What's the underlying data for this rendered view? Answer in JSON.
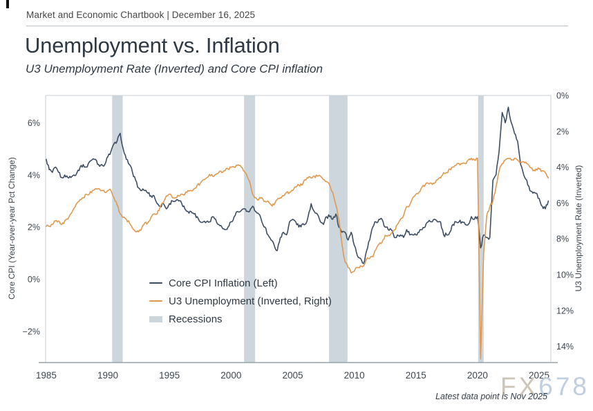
{
  "header": {
    "kicker": "Market and Economic Chartbook | December 16, 2025"
  },
  "watermark": {
    "part1": "FX",
    "color1": "#cdc5b8",
    "part2": "678",
    "color2": "#bfcfdf"
  },
  "footnote": "Latest data point is Nov 2025",
  "chart_data": {
    "type": "line",
    "title": "Unemployment vs. Inflation",
    "subtitle": "U3 Unemployment Rate (Inverted) and Core CPI inflation",
    "x_start": 1985.0,
    "x_step": 0.25,
    "x_axis": {
      "range": [
        1984.95,
        2025.95
      ],
      "ticks": [
        1985,
        1990,
        1995,
        2000,
        2005,
        2010,
        2015,
        2020,
        2025
      ]
    },
    "left_axis": {
      "label": "Core CPI (Year-over-year Pct Change)",
      "range": [
        -3.2,
        7.05
      ],
      "ticks": [
        -2,
        0,
        2,
        4,
        6
      ],
      "tick_labels": [
        "−2%",
        "0%",
        "2%",
        "4%",
        "6%"
      ]
    },
    "right_axis": {
      "label": "U3 Unemployment Rate (Inverted)",
      "inverted": true,
      "range": [
        0,
        14.9
      ],
      "ticks": [
        0,
        2,
        4,
        6,
        8,
        10,
        12,
        14
      ],
      "tick_labels": [
        "0%",
        "2%",
        "4%",
        "6%",
        "8%",
        "10%",
        "12%",
        "14%"
      ]
    },
    "series": [
      {
        "name": "Core CPI Inflation (Left)",
        "axis": "left",
        "color": "#3e4e62",
        "wiggle": 0.07,
        "values": [
          4.6,
          4.2,
          4.1,
          4.3,
          4.1,
          3.9,
          4.0,
          3.9,
          3.9,
          4.0,
          4.1,
          4.3,
          4.4,
          4.3,
          4.5,
          4.6,
          4.6,
          4.4,
          4.4,
          4.4,
          4.7,
          4.9,
          5.2,
          5.3,
          5.6,
          5.0,
          4.6,
          4.4,
          4.1,
          3.8,
          3.5,
          3.4,
          3.4,
          3.3,
          3.2,
          3.2,
          2.9,
          2.8,
          2.9,
          2.7,
          2.9,
          3.0,
          3.0,
          3.0,
          2.9,
          2.7,
          2.6,
          2.6,
          2.5,
          2.4,
          2.2,
          2.2,
          2.2,
          2.2,
          2.4,
          2.3,
          2.1,
          2.0,
          1.9,
          2.0,
          2.2,
          2.4,
          2.6,
          2.6,
          2.7,
          2.6,
          2.6,
          2.8,
          2.6,
          2.5,
          2.2,
          2.0,
          1.7,
          1.5,
          1.3,
          1.1,
          1.6,
          1.8,
          1.7,
          2.2,
          2.3,
          2.2,
          2.0,
          2.1,
          2.1,
          2.4,
          2.9,
          2.6,
          2.5,
          2.2,
          2.1,
          2.4,
          2.4,
          2.3,
          2.5,
          2.0,
          1.8,
          1.8,
          1.5,
          1.8,
          1.3,
          0.9,
          0.8,
          0.6,
          1.1,
          1.5,
          2.0,
          2.2,
          2.3,
          2.3,
          2.0,
          1.9,
          1.9,
          1.6,
          1.7,
          1.7,
          1.6,
          1.9,
          1.7,
          1.7,
          1.7,
          1.8,
          1.9,
          2.0,
          2.2,
          2.2,
          2.3,
          2.2,
          2.2,
          1.7,
          1.7,
          1.8,
          2.1,
          2.2,
          2.2,
          2.2,
          2.1,
          2.1,
          2.4,
          2.3,
          2.4,
          1.2,
          1.7,
          1.6,
          1.6,
          3.8,
          4.0,
          4.9,
          6.4,
          6.0,
          6.6,
          6.0,
          5.6,
          5.3,
          4.4,
          4.0,
          3.8,
          3.4,
          3.3,
          3.3,
          3.1,
          2.8,
          2.7,
          3.0
        ]
      },
      {
        "name": "U3 Unemployment (Inverted, Right)",
        "axis": "right",
        "color": "#e0994f",
        "wiggle": 0.08,
        "values": [
          7.3,
          7.3,
          7.2,
          7.0,
          7.0,
          7.2,
          7.0,
          6.9,
          6.6,
          6.3,
          6.0,
          5.8,
          5.7,
          5.5,
          5.5,
          5.3,
          5.2,
          5.2,
          5.3,
          5.4,
          5.3,
          5.3,
          5.7,
          6.1,
          6.6,
          6.8,
          6.9,
          7.1,
          7.4,
          7.6,
          7.6,
          7.4,
          7.1,
          7.1,
          6.8,
          6.6,
          6.6,
          6.2,
          6.0,
          5.6,
          5.5,
          5.7,
          5.7,
          5.6,
          5.5,
          5.5,
          5.3,
          5.3,
          5.2,
          5.0,
          4.9,
          4.7,
          4.6,
          4.4,
          4.5,
          4.4,
          4.3,
          4.3,
          4.2,
          4.1,
          4.0,
          4.0,
          3.9,
          3.9,
          4.2,
          4.4,
          4.8,
          5.5,
          5.7,
          5.8,
          5.7,
          5.9,
          5.9,
          6.1,
          6.1,
          5.8,
          5.7,
          5.6,
          5.4,
          5.4,
          5.3,
          5.1,
          5.0,
          5.0,
          4.7,
          4.6,
          4.6,
          4.5,
          4.5,
          4.5,
          4.7,
          4.8,
          5.0,
          5.4,
          6.1,
          6.9,
          8.3,
          9.3,
          9.6,
          9.9,
          9.8,
          9.6,
          9.5,
          9.5,
          9.1,
          9.1,
          9.0,
          8.6,
          8.3,
          8.2,
          7.8,
          7.8,
          7.7,
          7.5,
          7.2,
          6.9,
          6.7,
          6.2,
          6.1,
          5.7,
          5.5,
          5.4,
          5.1,
          5.0,
          4.9,
          4.9,
          4.9,
          4.7,
          4.6,
          4.3,
          4.3,
          4.1,
          4.0,
          3.9,
          3.8,
          3.8,
          3.8,
          3.6,
          3.5,
          3.6,
          3.5,
          14.7,
          8.8,
          6.7,
          6.2,
          5.9,
          5.1,
          4.2,
          3.8,
          3.6,
          3.5,
          3.6,
          3.5,
          3.6,
          3.7,
          3.7,
          3.8,
          4.0,
          4.2,
          4.1,
          4.1,
          4.2,
          4.3,
          4.6
        ]
      }
    ],
    "recessions": {
      "label": "Recessions",
      "color": "#ccd6dc",
      "bands": [
        [
          1990.35,
          1991.2
        ],
        [
          2001.05,
          2001.95
        ],
        [
          2007.95,
          2009.45
        ],
        [
          2020.05,
          2020.5
        ]
      ]
    },
    "frame_color": "#c6ced4",
    "baseline_color": "#98a2aa",
    "tick_color": "#3c4650"
  }
}
